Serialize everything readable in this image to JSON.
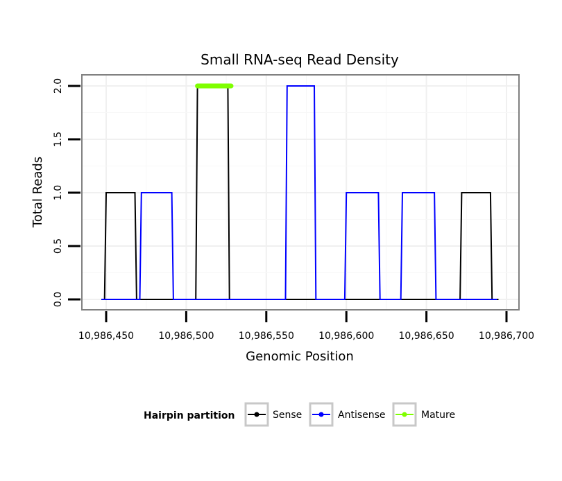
{
  "chart_data": {
    "type": "line",
    "title": "Small RNA-seq Read Density",
    "xlabel": "Genomic Position",
    "ylabel": "Total Reads",
    "xlim": [
      10986445,
      10986700
    ],
    "ylim": [
      -0.1,
      2.05
    ],
    "x_ticks": [
      10986450,
      10986500,
      10986550,
      10986600,
      10986650,
      10986700
    ],
    "x_tick_labels": [
      "10,986,450",
      "10,986,500",
      "10,986,550",
      "10,986,600",
      "10,986,650",
      "10,986,700"
    ],
    "y_ticks": [
      0.0,
      0.5,
      1.0,
      1.5,
      2.0
    ],
    "y_tick_labels": [
      "0.0",
      "0.5",
      "1.0",
      "1.5",
      "2.0"
    ],
    "grid": true,
    "series": [
      {
        "name": "Sense",
        "color": "#000000",
        "x": [
          10986447,
          10986449,
          10986450,
          10986468,
          10986469,
          10986506,
          10986507,
          10986526,
          10986527,
          10986671,
          10986672,
          10986690,
          10986691,
          10986695
        ],
        "y": [
          0,
          0,
          1,
          1,
          0,
          0,
          2,
          2,
          0,
          0,
          1,
          1,
          0,
          0
        ]
      },
      {
        "name": "Antisense",
        "color": "#0000ff",
        "x": [
          10986447,
          10986471,
          10986472,
          10986491,
          10986492,
          10986562,
          10986563,
          10986580,
          10986581,
          10986599,
          10986600,
          10986620,
          10986621,
          10986634,
          10986635,
          10986655,
          10986656,
          10986694
        ],
        "y": [
          0,
          0,
          1,
          1,
          0,
          0,
          2,
          2,
          0,
          0,
          1,
          1,
          0,
          0,
          1,
          1,
          0,
          0
        ]
      },
      {
        "name": "Mature",
        "color": "#7fff00",
        "x": [
          10986507,
          10986528
        ],
        "y": [
          2,
          2
        ]
      }
    ],
    "legend": {
      "title": "Hairpin partition",
      "position": "bottom",
      "entries": [
        "Sense",
        "Antisense",
        "Mature"
      ]
    }
  }
}
